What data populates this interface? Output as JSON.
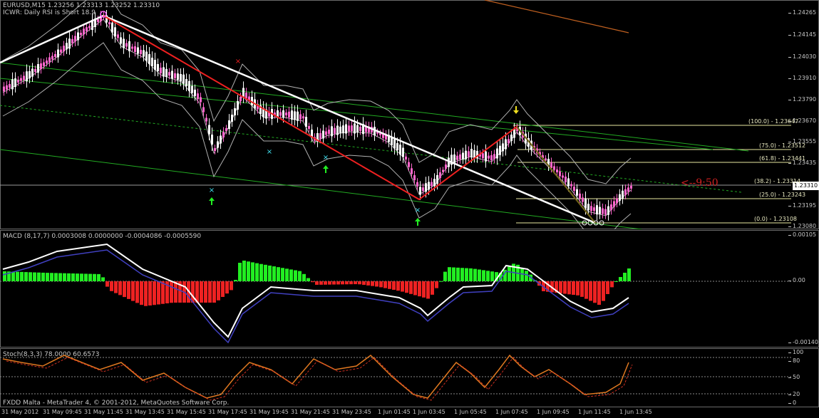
{
  "main": {
    "symbol_line": "EURUSD,M15  1.23256 1.23313 1.23252 1.23310",
    "indicator_line": "ICWR: Daily RSI is Short 18.9",
    "price_ticks": [
      "1.24265",
      "1.24145",
      "1.24030",
      "1.23910",
      "1.23790",
      "1.23670",
      "1.23555",
      "1.23435",
      "1.23195",
      "1.23080"
    ],
    "current_price": "1.23310",
    "timer": "<--9:50",
    "fib_levels": [
      "(100.0) - 1.23647",
      "(75.0) - 1.23512",
      "(61.8) - 1.23441",
      "(38.2) - 1.23314",
      "(25.0) - 1.23243",
      "(0.0) - 1.23108"
    ]
  },
  "macd": {
    "label": "MACD  (8,17,7) 0.0003008 0.0000000 -0.0004086 -0.0005590",
    "ticks": [
      "0.00105",
      "0.00",
      "-0.00140"
    ]
  },
  "stoch": {
    "label": "Stoch(8,3,3) 78.0000 60.6573",
    "ticks": [
      "100",
      "80",
      "50",
      "20",
      "0"
    ]
  },
  "time_axis": [
    "31 May 2012",
    "31 May 09:45",
    "31 May 11:45",
    "31 May 13:45",
    "31 May 15:45",
    "31 May 17:45",
    "31 May 19:45",
    "31 May 21:45",
    "31 May 23:45",
    "1 Jun 01:45",
    "1 Jun 03:45",
    "1 Jun 05:45",
    "1 Jun 07:45",
    "1 Jun 09:45",
    "1 Jun 11:45",
    "1 Jun 13:45"
  ],
  "status_bar": "FXDD Malta - MetaTrader 4, © 2001-2012, MetaQuotes Software Corp.",
  "colors": {
    "bull": "#ffffff",
    "bear": "#ff66cc",
    "green": "#22aa22",
    "red": "#ee2222",
    "macd_up": "#22ee22",
    "macd_dn": "#ee2222",
    "stoch": "#e07820",
    "fib": "#e8e8a0"
  }
}
